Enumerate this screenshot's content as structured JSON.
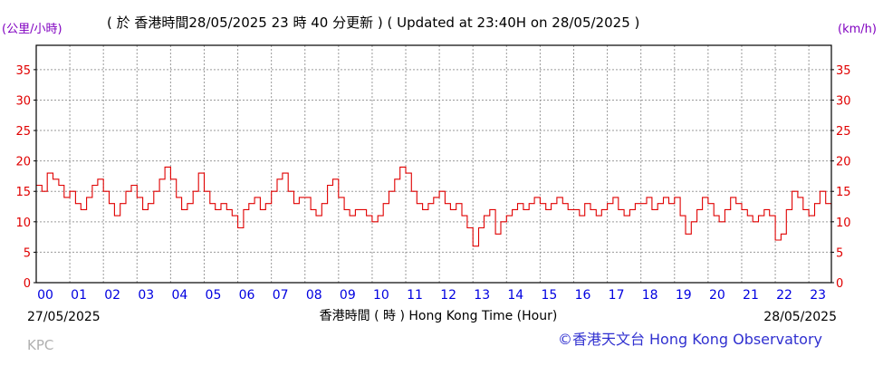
{
  "chart_data": {
    "type": "line",
    "title": "( 於 香港時間28/05/2025 23 時 40 分更新 ) ( Updated at 23:40H on 28/05/2025 )",
    "ylabel_left": "(公里/小時)",
    "ylabel_right": "(km/h)",
    "xlabel": "香港時間 ( 時 ) Hong Kong Time (Hour)",
    "start_date": "27/05/2025",
    "end_date": "28/05/2025",
    "station": "KPC",
    "credit": "©香港天文台 Hong Kong Observatory",
    "grid": true,
    "ylim": [
      0,
      39
    ],
    "xlim": [
      0,
      23.67
    ],
    "y_ticks": [
      0,
      5,
      10,
      15,
      20,
      25,
      30,
      35
    ],
    "x_tick_labels": [
      "00",
      "01",
      "02",
      "03",
      "04",
      "05",
      "06",
      "07",
      "08",
      "09",
      "10",
      "11",
      "12",
      "13",
      "14",
      "15",
      "16",
      "17",
      "18",
      "19",
      "20",
      "21",
      "22",
      "23"
    ],
    "series": [
      {
        "color": "#e00000",
        "x": [
          0.0,
          0.17,
          0.33,
          0.5,
          0.67,
          0.83,
          1.0,
          1.17,
          1.33,
          1.5,
          1.67,
          1.83,
          2.0,
          2.17,
          2.33,
          2.5,
          2.67,
          2.83,
          3.0,
          3.17,
          3.33,
          3.5,
          3.67,
          3.83,
          4.0,
          4.17,
          4.33,
          4.5,
          4.67,
          4.83,
          5.0,
          5.17,
          5.33,
          5.5,
          5.67,
          5.83,
          6.0,
          6.17,
          6.33,
          6.5,
          6.67,
          6.83,
          7.0,
          7.17,
          7.33,
          7.5,
          7.67,
          7.83,
          8.0,
          8.17,
          8.33,
          8.5,
          8.67,
          8.83,
          9.0,
          9.17,
          9.33,
          9.5,
          9.67,
          9.83,
          10.0,
          10.17,
          10.33,
          10.5,
          10.67,
          10.83,
          11.0,
          11.17,
          11.33,
          11.5,
          11.67,
          11.83,
          12.0,
          12.17,
          12.33,
          12.5,
          12.67,
          12.83,
          13.0,
          13.17,
          13.33,
          13.5,
          13.67,
          13.83,
          14.0,
          14.17,
          14.33,
          14.5,
          14.67,
          14.83,
          15.0,
          15.17,
          15.33,
          15.5,
          15.67,
          15.83,
          16.0,
          16.17,
          16.33,
          16.5,
          16.67,
          16.83,
          17.0,
          17.17,
          17.33,
          17.5,
          17.67,
          17.83,
          18.0,
          18.17,
          18.33,
          18.5,
          18.67,
          18.83,
          19.0,
          19.17,
          19.33,
          19.5,
          19.67,
          19.83,
          20.0,
          20.17,
          20.33,
          20.5,
          20.67,
          20.83,
          21.0,
          21.17,
          21.33,
          21.5,
          21.67,
          21.83,
          22.0,
          22.17,
          22.33,
          22.5,
          22.67,
          22.83,
          23.0,
          23.17,
          23.33,
          23.5,
          23.67
        ],
        "values": [
          16,
          15,
          18,
          17,
          16,
          14,
          15,
          13,
          12,
          14,
          16,
          17,
          15,
          13,
          11,
          13,
          15,
          16,
          14,
          12,
          13,
          15,
          17,
          19,
          17,
          14,
          12,
          13,
          15,
          18,
          15,
          13,
          12,
          13,
          12,
          11,
          9,
          12,
          13,
          14,
          12,
          13,
          15,
          17,
          18,
          15,
          13,
          14,
          14,
          12,
          11,
          13,
          16,
          17,
          14,
          12,
          11,
          12,
          12,
          11,
          10,
          11,
          13,
          15,
          17,
          19,
          18,
          15,
          13,
          12,
          13,
          14,
          15,
          13,
          12,
          13,
          11,
          9,
          6,
          9,
          11,
          12,
          8,
          10,
          11,
          12,
          13,
          12,
          13,
          14,
          13,
          12,
          13,
          14,
          13,
          12,
          12,
          11,
          13,
          12,
          11,
          12,
          13,
          14,
          12,
          11,
          12,
          13,
          13,
          14,
          12,
          13,
          14,
          13,
          14,
          11,
          8,
          10,
          12,
          14,
          13,
          11,
          10,
          12,
          14,
          13,
          12,
          11,
          10,
          11,
          12,
          11,
          7,
          8,
          12,
          15,
          14,
          12,
          11,
          13,
          15,
          13,
          12
        ]
      }
    ]
  }
}
